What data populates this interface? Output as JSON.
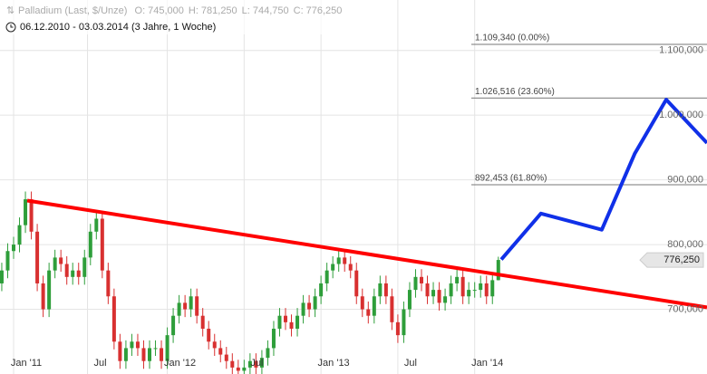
{
  "header": {
    "title": "Palladium (Last, $/Unze)",
    "ohlc": [
      {
        "key": "O:",
        "value": 745,
        "label": "745,000"
      },
      {
        "key": "H:",
        "value": 781.25,
        "label": "781,250"
      },
      {
        "key": "L:",
        "value": 744.75,
        "label": "744,750"
      },
      {
        "key": "C:",
        "value": 776.25,
        "label": "776,250"
      }
    ],
    "subtitle": "06.12.2010 - 03.03.2014 (3 Jahre, 1 Woche)"
  },
  "chart_data": {
    "type": "candlestick",
    "open": [
      740,
      760,
      790,
      800,
      830,
      870,
      820,
      740,
      700,
      760,
      780,
      770,
      750,
      760,
      750,
      780,
      820,
      840,
      760,
      720,
      650,
      620,
      640,
      650,
      640,
      620,
      640,
      640,
      620,
      660,
      690,
      710,
      700,
      720,
      690,
      670,
      650,
      640,
      630,
      620,
      610,
      605,
      610,
      620,
      610,
      625,
      640,
      670,
      690,
      680,
      670,
      690,
      710,
      700,
      720,
      740,
      760,
      770,
      780,
      770,
      760,
      720,
      700,
      690,
      720,
      740,
      720,
      680,
      660,
      700,
      730,
      750,
      740,
      720,
      730,
      710,
      720,
      740,
      750,
      720,
      730,
      730,
      740,
      720,
      745
    ],
    "high": [
      772,
      802,
      812,
      842,
      882,
      882,
      832,
      752,
      772,
      792,
      792,
      782,
      772,
      772,
      792,
      832,
      852,
      852,
      772,
      732,
      662,
      652,
      662,
      662,
      652,
      652,
      652,
      652,
      672,
      702,
      722,
      722,
      732,
      732,
      702,
      682,
      662,
      652,
      642,
      632,
      622,
      622,
      632,
      632,
      637,
      652,
      682,
      702,
      702,
      692,
      702,
      722,
      722,
      732,
      752,
      772,
      782,
      792,
      792,
      782,
      772,
      732,
      712,
      732,
      752,
      752,
      732,
      692,
      712,
      742,
      762,
      762,
      752,
      742,
      742,
      732,
      752,
      762,
      762,
      742,
      742,
      752,
      752,
      757,
      781.25
    ],
    "low": [
      728,
      748,
      778,
      788,
      818,
      808,
      728,
      688,
      688,
      748,
      758,
      738,
      738,
      738,
      738,
      768,
      808,
      748,
      708,
      638,
      608,
      608,
      628,
      628,
      608,
      608,
      628,
      608,
      608,
      648,
      678,
      688,
      688,
      678,
      658,
      638,
      628,
      618,
      608,
      598,
      593,
      593,
      598,
      598,
      598,
      613,
      628,
      658,
      668,
      658,
      658,
      678,
      688,
      688,
      708,
      728,
      748,
      758,
      758,
      748,
      708,
      688,
      678,
      678,
      708,
      708,
      668,
      648,
      648,
      688,
      718,
      728,
      708,
      708,
      698,
      698,
      708,
      728,
      708,
      708,
      718,
      718,
      708,
      708,
      744.75
    ],
    "close": [
      760,
      790,
      800,
      830,
      870,
      820,
      740,
      700,
      760,
      780,
      770,
      750,
      760,
      750,
      780,
      820,
      840,
      760,
      720,
      650,
      620,
      640,
      650,
      640,
      620,
      640,
      640,
      620,
      660,
      690,
      710,
      700,
      720,
      690,
      670,
      650,
      640,
      630,
      620,
      610,
      605,
      610,
      620,
      610,
      625,
      640,
      670,
      690,
      680,
      670,
      690,
      710,
      700,
      720,
      740,
      760,
      770,
      780,
      770,
      760,
      720,
      700,
      690,
      720,
      740,
      720,
      680,
      660,
      700,
      730,
      750,
      740,
      720,
      730,
      710,
      720,
      740,
      750,
      720,
      730,
      730,
      740,
      720,
      745,
      776.25
    ],
    "up_color": "#2e9e3a",
    "down_color": "#d83030",
    "xlim": [
      -0.3,
      119.3
    ],
    "ylim": [
      600,
      1178
    ],
    "xticks": [
      {
        "value": 2,
        "label": "Jan '11"
      },
      {
        "value": 14.5,
        "label": "Jul"
      },
      {
        "value": 28,
        "label": "Jan '12"
      },
      {
        "value": 41,
        "label": "Jul"
      },
      {
        "value": 54,
        "label": "Jan '13"
      },
      {
        "value": 67,
        "label": "Jul"
      },
      {
        "value": 80,
        "label": "Jan '14"
      }
    ],
    "yticks": [
      {
        "value": 700,
        "label": "700,000"
      },
      {
        "value": 800,
        "label": "800,000"
      },
      {
        "value": 900,
        "label": "900,000"
      },
      {
        "value": 1000,
        "label": "1.000,000"
      },
      {
        "value": 1100,
        "label": "1.100,000"
      }
    ],
    "grid": true,
    "levels": [
      {
        "value": 1109.34,
        "label": "1.109,340 (0.00%)"
      },
      {
        "value": 1026.516,
        "label": "1.026,516 (23.60%)"
      },
      {
        "value": 892.453,
        "label": "892,453 (61.80%)"
      }
    ],
    "last_value": {
      "value": 776.25,
      "label": "776,250"
    },
    "trendline": {
      "color": "#ff0000",
      "x": [
        4.3,
        119.3
      ],
      "values": [
        868,
        703
      ]
    },
    "projection": {
      "color": "#1030e8",
      "x": [
        84.5,
        91.2,
        101.5,
        107.1,
        112.4,
        119.3
      ],
      "values": [
        777,
        848,
        823,
        941,
        1024,
        957
      ]
    }
  }
}
